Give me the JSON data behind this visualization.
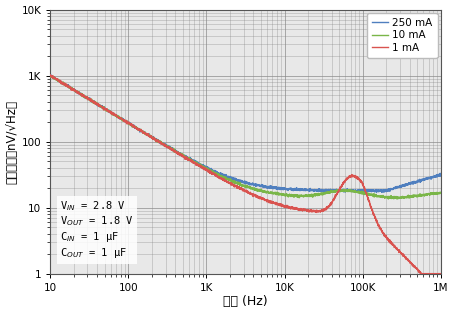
{
  "title": "",
  "xlabel": "頻率 (Hz)",
  "ylabel": "输出噪声（nV/√Hz）",
  "xlim": [
    10,
    1000000
  ],
  "ylim": [
    1,
    10000
  ],
  "legend_labels": [
    "1 mA",
    "10 mA",
    "250 mA"
  ],
  "line_colors": [
    "#d9534f",
    "#7ab648",
    "#4f7fbf"
  ],
  "annotation_lines": [
    "V$_{IN}$ = 2.8 V",
    "V$_{OUT}$ = 1.8 V",
    "C$_{IN}$ = 1 μF",
    "C$_{OUT}$ = 1 μF"
  ],
  "background_color": "#e8e8e8",
  "grid_color": "#888888"
}
